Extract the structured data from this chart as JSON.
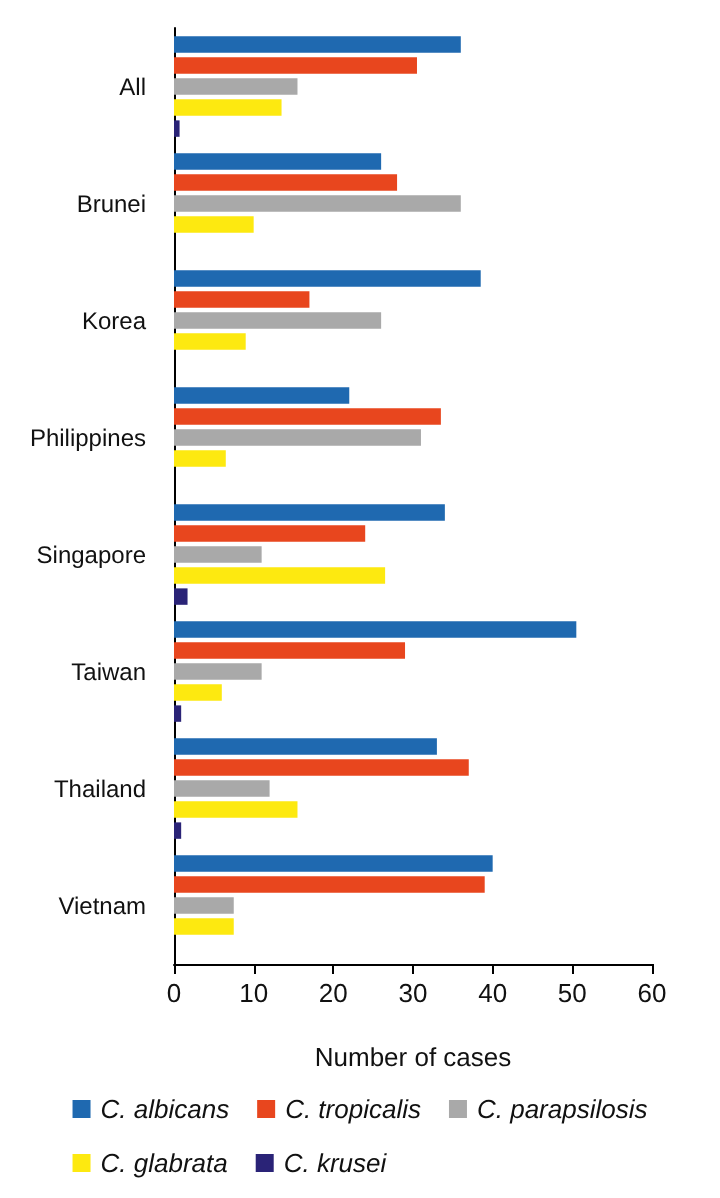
{
  "chart_data": {
    "type": "bar",
    "orientation": "horizontal",
    "xlabel": "Number of cases",
    "categories": [
      "All",
      "Brunei",
      "Korea",
      "Philippines",
      "Singapore",
      "Taiwan",
      "Thailand",
      "Vietnam"
    ],
    "series": [
      {
        "name": "C. albicans",
        "color": "#1f69b0",
        "values": [
          36,
          26,
          38.5,
          22,
          34,
          50.5,
          33,
          40
        ]
      },
      {
        "name": "C. tropicalis",
        "color": "#e8461e",
        "values": [
          30.5,
          28,
          17,
          33.5,
          24,
          29,
          37,
          39
        ]
      },
      {
        "name": "C. parapsilosis",
        "color": "#a9a9a9",
        "values": [
          15.5,
          36,
          26,
          31,
          11,
          11,
          12,
          7.5
        ]
      },
      {
        "name": "C. glabrata",
        "color": "#fde910",
        "values": [
          13.5,
          10,
          9,
          6.5,
          26.5,
          6,
          15.5,
          7.5
        ]
      },
      {
        "name": "C. krusei",
        "color": "#2a2377",
        "values": [
          0.7,
          null,
          null,
          null,
          1.7,
          0.9,
          0.9,
          null
        ]
      }
    ],
    "xlim": [
      0,
      60
    ],
    "xticks": [
      0,
      10,
      20,
      30,
      40,
      50,
      60
    ],
    "grid": false,
    "legend": "bottom"
  }
}
